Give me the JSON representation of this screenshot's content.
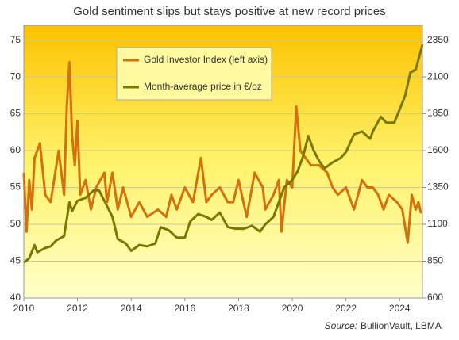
{
  "chart_data": {
    "type": "line",
    "title": "Gold sentiment slips but stays positive at new record prices",
    "source_label": "Source:",
    "source": "BullionVault, LBMA",
    "xlim": [
      2010,
      2024.85
    ],
    "xticks": [
      2010,
      2012,
      2014,
      2016,
      2018,
      2020,
      2022,
      2024
    ],
    "ylim": [
      40,
      77
    ],
    "yticks": [
      40,
      45,
      50,
      55,
      60,
      65,
      70,
      75
    ],
    "y2lim": [
      600,
      2450
    ],
    "y2ticks": [
      600,
      850,
      1100,
      1350,
      1600,
      1850,
      2100,
      2350
    ],
    "grid": true,
    "legend": "top-left",
    "series": [
      {
        "name": "Gold Investor Index (left axis)",
        "color": "#d2720c",
        "x": [
          2010.0,
          2010.1,
          2010.2,
          2010.3,
          2010.4,
          2010.6,
          2010.8,
          2011.0,
          2011.3,
          2011.5,
          2011.6,
          2011.7,
          2011.8,
          2011.9,
          2012.0,
          2012.1,
          2012.3,
          2012.5,
          2012.7,
          2013.0,
          2013.1,
          2013.3,
          2013.5,
          2013.7,
          2014.0,
          2014.3,
          2014.6,
          2015.0,
          2015.3,
          2015.5,
          2015.7,
          2016.0,
          2016.3,
          2016.5,
          2016.6,
          2016.8,
          2017.0,
          2017.3,
          2017.6,
          2017.8,
          2018.0,
          2018.3,
          2018.6,
          2018.9,
          2019.0,
          2019.3,
          2019.5,
          2019.6,
          2019.8,
          2020.0,
          2020.15,
          2020.3,
          2020.5,
          2020.7,
          2021.0,
          2021.3,
          2021.5,
          2021.7,
          2022.0,
          2022.3,
          2022.6,
          2022.8,
          2023.0,
          2023.2,
          2023.4,
          2023.6,
          2023.9,
          2024.1,
          2024.3,
          2024.45,
          2024.6,
          2024.7,
          2024.8
        ],
        "values": [
          57,
          49,
          56,
          52,
          59,
          61,
          54,
          53,
          60,
          54,
          66,
          72,
          62,
          58,
          64,
          54,
          56,
          52,
          55,
          57,
          53,
          57,
          52,
          55,
          51,
          53,
          51,
          52,
          51,
          54,
          52,
          55,
          53,
          57,
          59,
          53,
          54,
          55,
          53,
          53,
          56,
          51,
          57,
          55,
          52,
          54,
          56,
          49,
          56,
          55,
          66,
          60,
          59,
          58,
          58,
          57,
          55,
          54,
          55,
          52,
          56,
          55,
          55,
          54,
          52,
          54,
          53,
          52,
          47.5,
          54,
          52,
          53,
          51.5
        ]
      },
      {
        "name": "Month-average price in €/oz",
        "color": "#7a7800",
        "axis": "y2",
        "x": [
          2010.0,
          2010.2,
          2010.4,
          2010.5,
          2010.8,
          2011.0,
          2011.2,
          2011.5,
          2011.7,
          2011.8,
          2012.0,
          2012.3,
          2012.6,
          2012.8,
          2013.0,
          2013.3,
          2013.5,
          2013.8,
          2014.0,
          2014.3,
          2014.6,
          2014.9,
          2015.1,
          2015.4,
          2015.7,
          2016.0,
          2016.2,
          2016.5,
          2016.8,
          2017.0,
          2017.3,
          2017.6,
          2017.9,
          2018.2,
          2018.5,
          2018.8,
          2019.0,
          2019.3,
          2019.5,
          2019.7,
          2020.0,
          2020.2,
          2020.4,
          2020.6,
          2020.8,
          2021.0,
          2021.2,
          2021.5,
          2021.8,
          2022.0,
          2022.3,
          2022.6,
          2022.9,
          2023.0,
          2023.3,
          2023.5,
          2023.8,
          2024.0,
          2024.2,
          2024.4,
          2024.6,
          2024.85
        ],
        "values": [
          840,
          870,
          960,
          910,
          940,
          950,
          990,
          1020,
          1250,
          1190,
          1260,
          1280,
          1330,
          1330,
          1260,
          1150,
          1000,
          970,
          920,
          960,
          950,
          970,
          1080,
          1060,
          1010,
          1010,
          1120,
          1170,
          1150,
          1130,
          1180,
          1080,
          1070,
          1070,
          1090,
          1050,
          1100,
          1150,
          1250,
          1350,
          1400,
          1460,
          1560,
          1700,
          1600,
          1530,
          1480,
          1520,
          1550,
          1590,
          1710,
          1730,
          1680,
          1730,
          1830,
          1790,
          1790,
          1880,
          1970,
          2130,
          2150,
          2320
        ]
      }
    ]
  }
}
